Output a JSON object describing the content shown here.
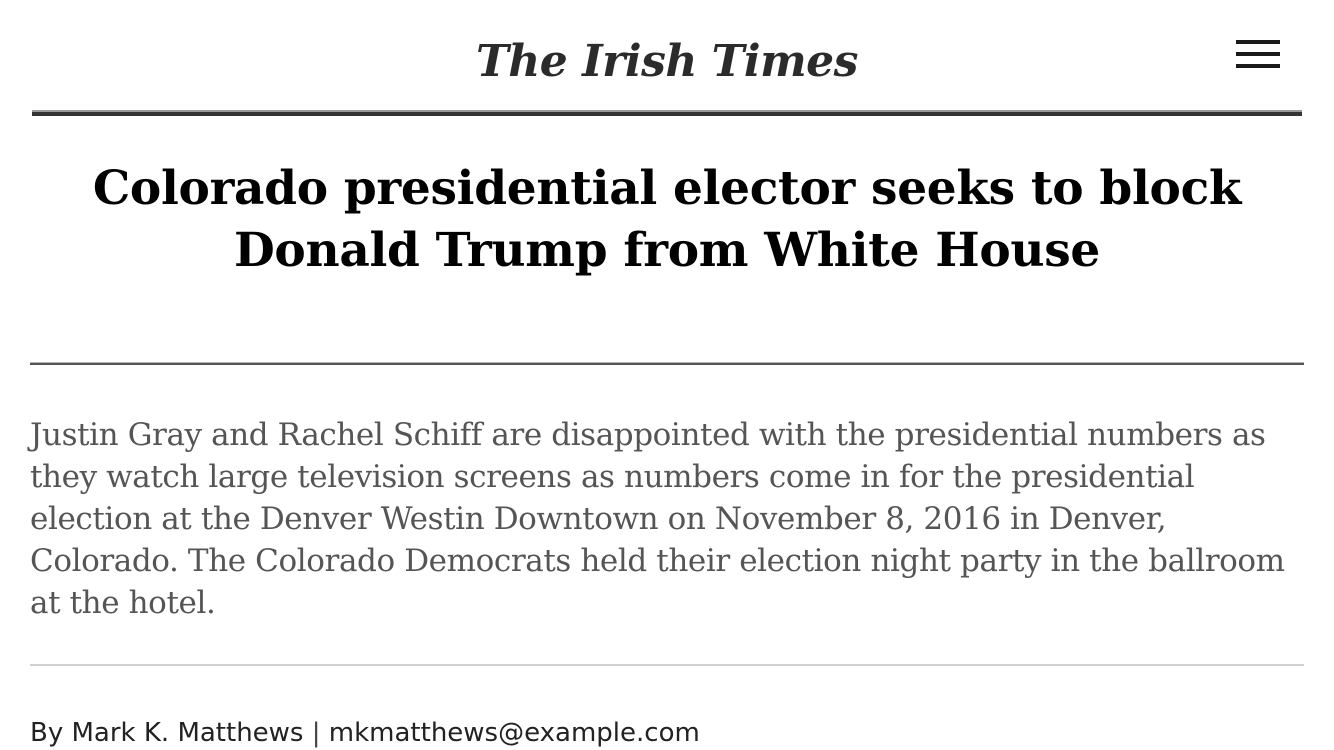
{
  "header": {
    "masthead": "The Irish Times",
    "menu_icon": "hamburger-menu-icon"
  },
  "article": {
    "headline": "Colorado presidential elector seeks to block Donald Trump from White House",
    "caption": "Justin Gray and Rachel Schiff are disappointed with the presidential numbers as they watch large television screens as numbers come in for the presidential election at the Denver Westin Downtown on November 8, 2016 in Denver, Colorado. The Colorado Democrats held their election night party in the ballroom at the hotel.",
    "byline": {
      "author": "By Mark K. Matthews",
      "separator": "|",
      "email": "mkmatthews@example.com"
    }
  },
  "colors": {
    "text": "#000000",
    "caption_text": "#555555",
    "rule": "#333333"
  }
}
